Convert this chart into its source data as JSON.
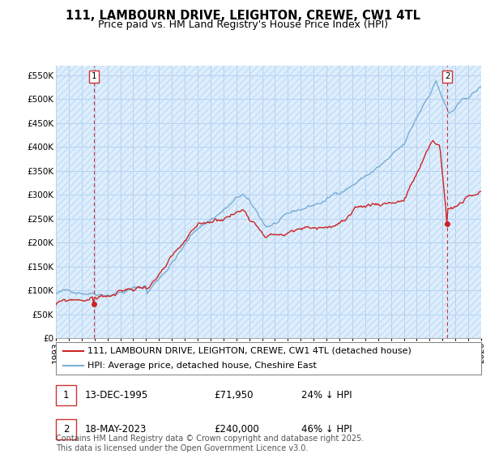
{
  "title": "111, LAMBOURN DRIVE, LEIGHTON, CREWE, CW1 4TL",
  "subtitle": "Price paid vs. HM Land Registry's House Price Index (HPI)",
  "ylim": [
    0,
    570000
  ],
  "yticks": [
    0,
    50000,
    100000,
    150000,
    200000,
    250000,
    300000,
    350000,
    400000,
    450000,
    500000,
    550000
  ],
  "ytick_labels": [
    "£0",
    "£50K",
    "£100K",
    "£150K",
    "£200K",
    "£250K",
    "£300K",
    "£350K",
    "£400K",
    "£450K",
    "£500K",
    "£550K"
  ],
  "hpi_color": "#7aaed4",
  "price_color": "#cc2222",
  "marker_color": "#cc2222",
  "dashed_line_color": "#cc3333",
  "bg_color": "#ddeeff",
  "hatch_color": "#c8dcf0",
  "grid_color": "#aaccee",
  "legend_label_price": "111, LAMBOURN DRIVE, LEIGHTON, CREWE, CW1 4TL (detached house)",
  "legend_label_hpi": "HPI: Average price, detached house, Cheshire East",
  "annotation1_date": "13-DEC-1995",
  "annotation1_price": "£71,950",
  "annotation1_pct": "24% ↓ HPI",
  "annotation2_date": "18-MAY-2023",
  "annotation2_price": "£240,000",
  "annotation2_pct": "46% ↓ HPI",
  "footnote": "Contains HM Land Registry data © Crown copyright and database right 2025.\nThis data is licensed under the Open Government Licence v3.0.",
  "title_fontsize": 10.5,
  "subtitle_fontsize": 9,
  "axis_fontsize": 7.5,
  "legend_fontsize": 8,
  "table_fontsize": 8.5,
  "footnote_fontsize": 7
}
